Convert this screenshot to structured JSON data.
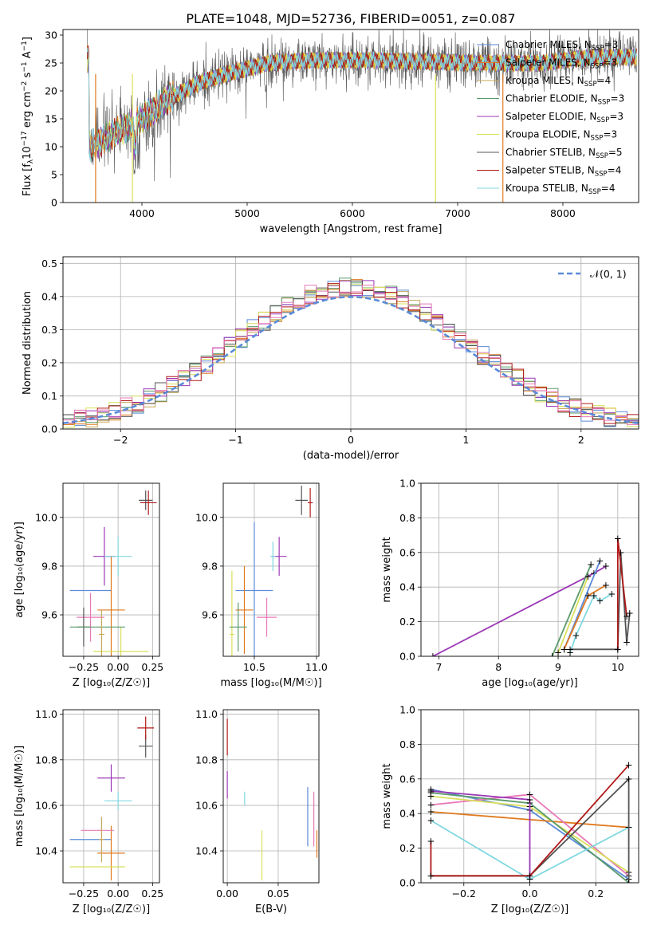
{
  "figure_title": "PLATE=1048, MJD=52736, FIBERID=0051, z=0.087",
  "colors": {
    "Chabrier MILES": "#5b8bd9",
    "Salpeter MILES": "#e07a1f",
    "Kroupa MILES": "#c8a85a",
    "Chabrier ELODIE": "#5a9a6a",
    "Salpeter ELODIE": "#9b37b6",
    "Kroupa ELODIE": "#d8e05a",
    "Chabrier STELIB": "#555555",
    "Salpeter STELIB": "#b01818",
    "Kroupa STELIB": "#80d8e0",
    "pink": "#e878b8",
    "normal": "#5b8bd9"
  },
  "chart_data": [
    {
      "id": "spectrum",
      "type": "line",
      "xlabel": "wavelength [Angstrom, rest frame]",
      "ylabel_main": "Flux [f",
      "ylabel_sub": "λ",
      "ylabel_mid": "10",
      "ylabel_sup": "−17",
      "ylabel_rest": " erg cm",
      "ylabel_sup2": "−2",
      "ylabel_rest2": " s",
      "ylabel_sup3": "−1",
      "ylabel_rest3": " A",
      "ylabel_sup4": "−1",
      "ylabel_end": "]",
      "xlim": [
        3250,
        8720
      ],
      "ylim": [
        0,
        31
      ],
      "xticks": [
        4000,
        5000,
        6000,
        7000,
        8000
      ],
      "yticks": [
        0,
        5,
        10,
        15,
        20,
        25,
        30
      ],
      "legend": [
        {
          "name": "Chabrier MILES",
          "nssp": "3"
        },
        {
          "name": "Salpeter MILES",
          "nssp": "3"
        },
        {
          "name": "Kroupa MILES",
          "nssp": "4"
        },
        {
          "name": "Chabrier ELODIE",
          "nssp": "3"
        },
        {
          "name": "Salpeter ELODIE",
          "nssp": "3"
        },
        {
          "name": "Kroupa ELODIE",
          "nssp": "3"
        },
        {
          "name": "Chabrier STELIB",
          "nssp": "5"
        },
        {
          "name": "Salpeter STELIB",
          "nssp": "4"
        },
        {
          "name": "Kroupa STELIB",
          "nssp": "4"
        }
      ],
      "legend_nssp_prefix": "N",
      "legend_nssp_sub": "SSP",
      "continuum": [
        [
          3500,
          10
        ],
        [
          3600,
          11
        ],
        [
          3700,
          12
        ],
        [
          3800,
          13
        ],
        [
          3900,
          14
        ],
        [
          4000,
          15
        ],
        [
          4100,
          16.5
        ],
        [
          4200,
          18
        ],
        [
          4300,
          19
        ],
        [
          4400,
          20
        ],
        [
          4500,
          21
        ],
        [
          4600,
          21.8
        ],
        [
          4800,
          23
        ],
        [
          5000,
          24
        ],
        [
          5200,
          25
        ],
        [
          5400,
          25.2
        ],
        [
          5600,
          25.4
        ],
        [
          5800,
          25.5
        ],
        [
          6000,
          25.5
        ],
        [
          6200,
          25.5
        ],
        [
          6400,
          25.4
        ],
        [
          6600,
          25.3
        ],
        [
          6800,
          25.2
        ],
        [
          7000,
          25
        ],
        [
          7200,
          25
        ],
        [
          7400,
          25
        ],
        [
          7600,
          25
        ],
        [
          7800,
          25
        ],
        [
          8000,
          25.5
        ],
        [
          8300,
          26
        ],
        [
          8700,
          26
        ]
      ]
    },
    {
      "id": "residuals",
      "type": "histogram",
      "xlabel": "(data-model)/error",
      "ylabel": "Normed distribution",
      "xlim": [
        -2.5,
        2.5
      ],
      "ylim": [
        0,
        0.52
      ],
      "xticks": [
        -2,
        -1,
        0,
        1,
        2
      ],
      "yticks": [
        0.0,
        0.1,
        0.2,
        0.3,
        0.4,
        0.5
      ],
      "legend": "𝒩(0, 1)",
      "bin_width": 0.1
    },
    {
      "id": "z_age",
      "type": "scatter",
      "xlabel": "Z [log₁₀(Z/Z☉)]",
      "ylabel": "age  [log₁₀(age/yr)]",
      "xlim": [
        -0.4,
        0.3
      ],
      "ylim": [
        9.43,
        10.14
      ],
      "xticks": [
        -0.25,
        0.0,
        0.25
      ],
      "yticks": [
        9.6,
        9.8,
        10.0
      ]
    },
    {
      "id": "mass_age",
      "type": "scatter",
      "xlabel": "mass [log₁₀(M/M☉)]",
      "ylabel": "",
      "xlim": [
        10.25,
        11.02
      ],
      "ylim": [
        9.43,
        10.14
      ],
      "xticks": [
        10.5,
        11.0
      ],
      "yticks": [
        9.6,
        9.8,
        10.0
      ]
    },
    {
      "id": "age_weight",
      "type": "line",
      "xlabel": "age  [log₁₀(age/yr)]",
      "ylabel": "mass weight",
      "xlim": [
        6.7,
        10.35
      ],
      "ylim": [
        0,
        1.0
      ],
      "xticks": [
        7,
        8,
        9,
        10
      ],
      "yticks": [
        0.0,
        0.2,
        0.4,
        0.6,
        0.8,
        1.0
      ]
    },
    {
      "id": "z_mass",
      "type": "scatter",
      "xlabel": "Z [log₁₀(Z/Z☉)]",
      "ylabel": "mass [log₁₀(M/M☉)]",
      "xlim": [
        -0.4,
        0.3
      ],
      "ylim": [
        10.26,
        11.02
      ],
      "xticks": [
        -0.25,
        0.0,
        0.25
      ],
      "yticks": [
        10.4,
        10.6,
        10.8,
        11.0
      ]
    },
    {
      "id": "ebv_mass",
      "type": "scatter",
      "xlabel": "E(B-V)",
      "ylabel": "",
      "xlim": [
        -0.004,
        0.09
      ],
      "ylim": [
        10.26,
        11.02
      ],
      "xticks": [
        0.0,
        0.05
      ],
      "yticks": [
        10.4,
        10.6,
        10.8,
        11.0
      ]
    },
    {
      "id": "z_weight",
      "type": "line",
      "xlabel": "Z [log₁₀(Z/Z☉)]",
      "ylabel": "mass weight",
      "xlim": [
        -0.33,
        0.33
      ],
      "ylim": [
        0,
        1.0
      ],
      "xticks": [
        -0.2,
        0.0,
        0.2
      ],
      "yticks": [
        0.0,
        0.2,
        0.4,
        0.6,
        0.8,
        1.0
      ]
    }
  ]
}
